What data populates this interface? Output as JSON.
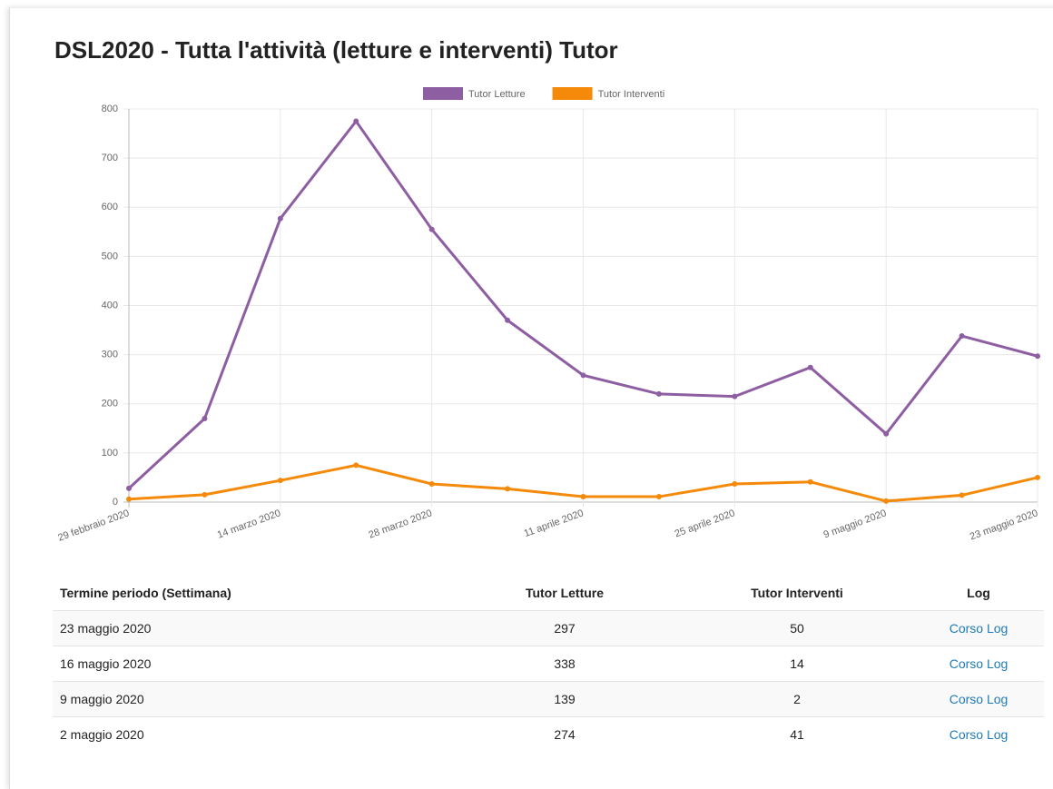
{
  "title": "DSL2020 - Tutta l'attività (letture e interventi) Tutor",
  "chart_data": {
    "type": "line",
    "categories": [
      "29 febbraio 2020",
      null,
      "14 marzo 2020",
      null,
      "28 marzo 2020",
      null,
      "11 aprile 2020",
      null,
      "25 aprile 2020",
      null,
      "9 maggio 2020",
      null,
      "23 maggio 2020"
    ],
    "series": [
      {
        "name": "Tutor Letture",
        "color": "#8e5ea2",
        "values": [
          28,
          170,
          577,
          775,
          555,
          370,
          258,
          220,
          215,
          274,
          139,
          338,
          297
        ]
      },
      {
        "name": "Tutor Interventi",
        "color": "#f58a0a",
        "values": [
          6,
          15,
          44,
          75,
          37,
          27,
          11,
          11,
          37,
          41,
          2,
          14,
          50
        ]
      }
    ],
    "ylim": [
      0,
      800
    ],
    "yticks": [
      0,
      100,
      200,
      300,
      400,
      500,
      600,
      700,
      800
    ],
    "grid": true,
    "legend": "top"
  },
  "table": {
    "header": [
      "Termine periodo (Settimana)",
      "Tutor Letture",
      "Tutor Interventi",
      "Log"
    ],
    "rows": [
      [
        "23 maggio 2020",
        297,
        50,
        "Corso Log"
      ],
      [
        "16 maggio 2020",
        338,
        14,
        "Corso Log"
      ],
      [
        "9 maggio 2020",
        139,
        2,
        "Corso Log"
      ],
      [
        "2 maggio 2020",
        274,
        41,
        "Corso Log"
      ]
    ]
  }
}
